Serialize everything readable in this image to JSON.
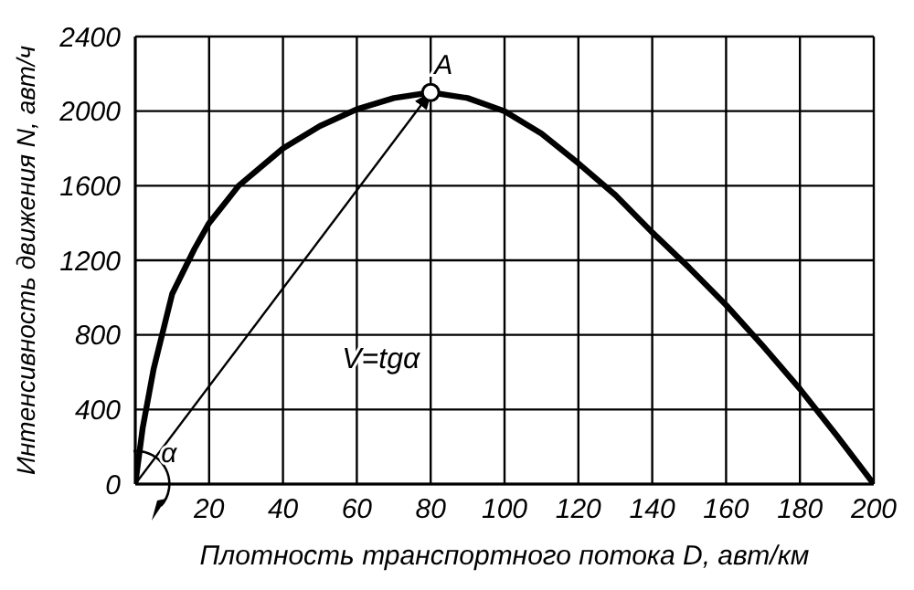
{
  "chart_data": {
    "type": "line",
    "xlabel": "Плотность транспортного потока D, авт/км",
    "ylabel": "Интенсивность движения N, авт/ч",
    "xlim": [
      0,
      200
    ],
    "xticks": [
      20,
      40,
      60,
      80,
      100,
      120,
      140,
      160,
      180,
      200
    ],
    "ylim": [
      0,
      2400
    ],
    "yticks": [
      0,
      400,
      800,
      1200,
      1600,
      2000,
      2400
    ],
    "grid": true,
    "series": [
      {
        "color": "#000000",
        "marker": "none",
        "x": [
          0,
          2,
          5,
          10,
          16,
          20,
          28,
          40,
          50,
          60,
          70,
          80,
          90,
          100,
          110,
          120,
          130,
          140,
          150,
          160,
          170,
          180,
          190,
          200
        ],
        "values": [
          0,
          300,
          620,
          1020,
          1260,
          1400,
          1600,
          1800,
          1920,
          2010,
          2070,
          2100,
          2070,
          2000,
          1880,
          1720,
          1550,
          1350,
          1160,
          960,
          740,
          510,
          260,
          0
        ]
      },
      {
        "color": "#000000",
        "marker": "none",
        "x": [
          0,
          80
        ],
        "values": [
          0,
          2100
        ]
      },
      {
        "type": "scatter",
        "color": "#000000",
        "marker": "circle",
        "x": [
          80
        ],
        "values": [
          2100
        ]
      }
    ],
    "annotations": [
      {
        "text": "A",
        "x": 80,
        "y": 2100
      },
      "V=tgα",
      "α"
    ]
  }
}
